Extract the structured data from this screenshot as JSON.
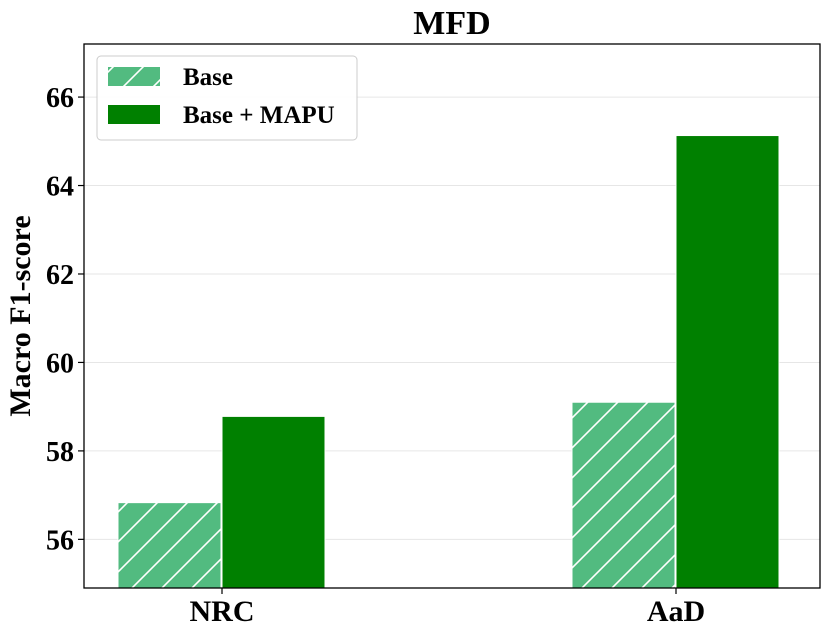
{
  "chart_data": {
    "type": "bar",
    "title": "MFD",
    "xlabel": "",
    "ylabel": "Macro F1-score",
    "categories": [
      "NRC",
      "AaD"
    ],
    "series": [
      {
        "name": "Base",
        "values": [
          56.83,
          59.1
        ],
        "color": "#52bb80",
        "hatch": "diagonal"
      },
      {
        "name": "Base + MAPU",
        "values": [
          58.78,
          65.13
        ],
        "color": "#008000",
        "hatch": "none"
      }
    ],
    "ylim": [
      54.9,
      67.2
    ],
    "yticks": [
      56,
      58,
      60,
      62,
      64,
      66
    ],
    "grid": true,
    "legend_position": "top-left"
  }
}
